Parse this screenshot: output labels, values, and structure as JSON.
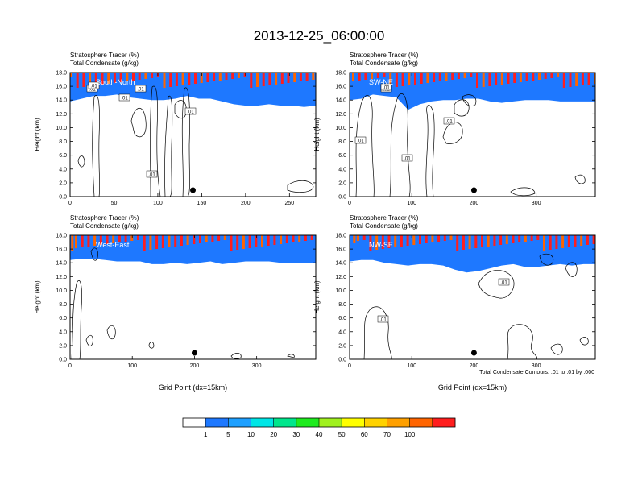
{
  "figure": {
    "title": "2013-12-25_06:00:00",
    "contour_note": "Total Condensate Contours: .01 to .01 by .000"
  },
  "colorbar": {
    "colors": [
      "#ffffff",
      "#1e78ff",
      "#1ea0ff",
      "#00e6e6",
      "#00e68c",
      "#1eeb1e",
      "#a0f01e",
      "#ffff00",
      "#ffd200",
      "#ffa000",
      "#ff6400",
      "#ff1e1e"
    ],
    "labels": [
      "1",
      "5",
      "10",
      "20",
      "30",
      "40",
      "50",
      "60",
      "70",
      "100"
    ]
  },
  "chart_data": [
    {
      "type": "heatmap",
      "id": "south-north",
      "cross_section": "South-North",
      "left_title": "Stratosphere Tracer   (%)",
      "left_subtitle": "Total Condensate   (g/kg)",
      "ylabel": "Height (km)",
      "xlabel": "",
      "xlim": [
        0,
        280
      ],
      "ylim": [
        0,
        18
      ],
      "xticks": [
        "0",
        "50",
        "100",
        "150",
        "200",
        "250"
      ],
      "yticks": [
        "0.0",
        "2.0",
        "4.0",
        "6.0",
        "8.0",
        "10.0",
        "12.0",
        "14.0",
        "16.0",
        "18.0"
      ],
      "tropopause_km": [
        14.6,
        15.0,
        15.4,
        15.4,
        15.6,
        15.2,
        15.0,
        14.8,
        14.8,
        15.0,
        15.4,
        15.0,
        15.0,
        14.6,
        14.2,
        14.0,
        14.0,
        14.2,
        14.0,
        14.0,
        13.8,
        14.0
      ],
      "center_marker_x": 140,
      "contour_value": ".01",
      "contour_labels": [
        ".01",
        ".01",
        ".01",
        ".01",
        ".01",
        ".01"
      ]
    },
    {
      "type": "heatmap",
      "id": "sw-ne",
      "cross_section": "SW-NE",
      "left_title": "Stratosphere Tracer   (%)",
      "left_subtitle": "Total Condensate   (g/kg)",
      "ylabel": "Height (km)",
      "xlabel": "",
      "xlim": [
        0,
        395
      ],
      "ylim": [
        0,
        18
      ],
      "xticks": [
        "0",
        "100",
        "200",
        "300"
      ],
      "yticks": [
        "0.0",
        "2.0",
        "4.0",
        "6.0",
        "8.0",
        "10.0",
        "12.0",
        "14.0",
        "16.0",
        "18.0"
      ],
      "tropopause_km": [
        14.8,
        15.0,
        15.6,
        15.4,
        15.2,
        13.4,
        14.2,
        14.6,
        14.8,
        14.8,
        15.0,
        15.0,
        14.6,
        14.4,
        14.6,
        14.8,
        14.8,
        14.8,
        14.6,
        14.6,
        14.6,
        14.6
      ],
      "center_marker_x": 200,
      "contour_value": ".01",
      "contour_labels": [
        ".01",
        ".01",
        ".01",
        ".01",
        ".01"
      ]
    },
    {
      "type": "heatmap",
      "id": "west-east",
      "cross_section": "West-East",
      "left_title": "Stratosphere Tracer   (%)",
      "left_subtitle": "Total Condensate   (g/kg)",
      "ylabel": "Height (km)",
      "xlabel": "Grid Point (dx=15km)",
      "xlim": [
        0,
        395
      ],
      "ylim": [
        0,
        18
      ],
      "xticks": [
        "0",
        "100",
        "200",
        "300"
      ],
      "yticks": [
        "0.0",
        "2.0",
        "4.0",
        "6.0",
        "8.0",
        "10.0",
        "12.0",
        "14.0",
        "16.0",
        "18.0"
      ],
      "tropopause_km": [
        15.2,
        15.4,
        15.4,
        15.2,
        15.0,
        15.0,
        15.0,
        14.6,
        14.6,
        14.8,
        14.6,
        14.8,
        15.0,
        14.6,
        14.8,
        15.0,
        15.0,
        15.0,
        14.8,
        14.8,
        14.8,
        14.8
      ],
      "center_marker_x": 200,
      "contour_value": ".01",
      "contour_labels": []
    },
    {
      "type": "heatmap",
      "id": "nw-se",
      "cross_section": "NW-SE",
      "left_title": "Stratosphere Tracer   (%)",
      "left_subtitle": "Total Condensate   (g/kg)",
      "ylabel": "Height (km)",
      "xlabel": "Grid Point (dx=15km)",
      "xlim": [
        0,
        395
      ],
      "ylim": [
        0,
        18
      ],
      "xticks": [
        "0",
        "100",
        "200",
        "300"
      ],
      "yticks": [
        "0.0",
        "2.0",
        "4.0",
        "6.0",
        "8.0",
        "10.0",
        "12.0",
        "14.0",
        "16.0",
        "18.0"
      ],
      "tropopause_km": [
        15.0,
        15.2,
        15.2,
        14.8,
        14.6,
        14.4,
        14.6,
        14.6,
        14.4,
        13.8,
        13.4,
        13.6,
        14.0,
        14.4,
        14.6,
        14.2,
        14.2,
        14.4,
        14.6,
        14.4,
        14.6,
        14.6
      ],
      "center_marker_x": 200,
      "contour_value": ".01",
      "contour_labels": [
        ".01",
        ".01"
      ]
    }
  ]
}
